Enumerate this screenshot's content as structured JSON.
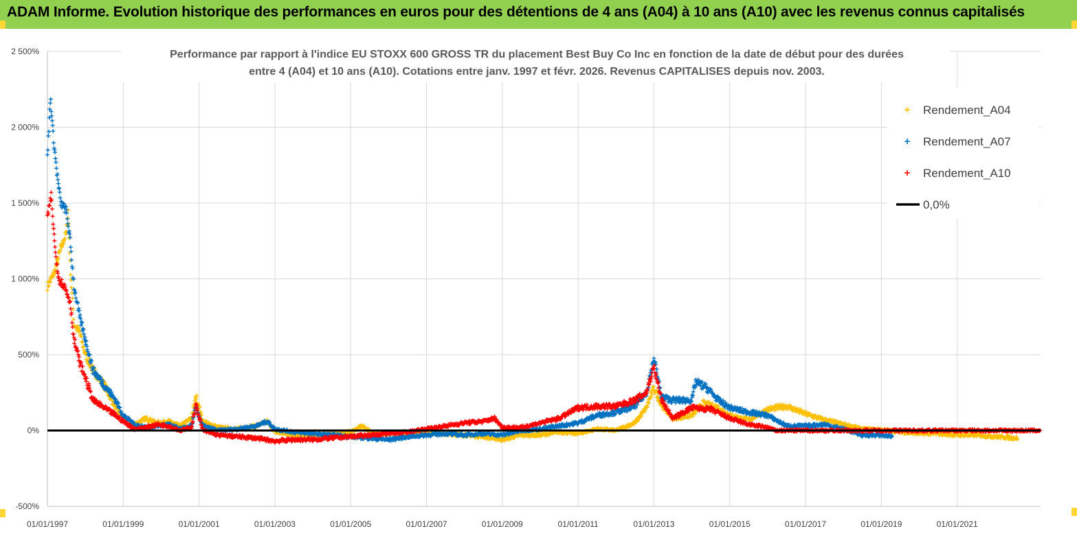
{
  "header": {
    "title": "ADAM Informe. Evolution historique des performances en euros pour des détentions de 4 ans (A04) à 10 ans (A10) avec les revenus connus capitalisés"
  },
  "chart_data": {
    "type": "scatter",
    "subtitle_lines": [
      "Performance par rapport à l'indice EU STOXX 600 GROSS TR  du placement Best Buy Co Inc en fonction de la date de début pour des durées",
      "entre 4 (A04) et 10 ans (A10). Cotations entre janv. 1997 et févr. 2026. Revenus CAPITALISES depuis nov. 2003."
    ],
    "y_ticks": [
      "2 500%",
      "2 000%",
      "1 500%",
      "1 000%",
      "500%",
      "0%",
      "-500%"
    ],
    "y_tick_values": [
      2500,
      2000,
      1500,
      1000,
      500,
      0,
      -500
    ],
    "ylim": [
      -500,
      2500
    ],
    "x_ticks": [
      "01/01/1997",
      "01/01/1999",
      "01/01/2001",
      "01/01/2003",
      "01/01/2005",
      "01/01/2007",
      "01/01/2009",
      "01/01/2011",
      "01/01/2013",
      "01/01/2015",
      "01/01/2017",
      "01/01/2019",
      "01/01/2021"
    ],
    "x_tick_years": [
      1997,
      1999,
      2001,
      2003,
      2005,
      2007,
      2009,
      2011,
      2013,
      2015,
      2017,
      2019,
      2021
    ],
    "xlim": [
      1997,
      2023.2
    ],
    "legend": [
      {
        "name": "Rendement_A04",
        "color": "#ffc000",
        "marker": "plus"
      },
      {
        "name": "Rendement_A07",
        "color": "#0070c0",
        "marker": "plus"
      },
      {
        "name": "Rendement_A10",
        "color": "#ff0000",
        "marker": "plus"
      },
      {
        "name": "0,0%",
        "color": "#000000",
        "marker": "line"
      }
    ],
    "series": [
      {
        "name": "Rendement_A04",
        "color": "#ffc000",
        "x_end": 2022.6,
        "points": [
          [
            1997.0,
            950
          ],
          [
            1997.2,
            1050
          ],
          [
            1997.35,
            1200
          ],
          [
            1997.5,
            1300
          ],
          [
            1997.55,
            1450
          ],
          [
            1997.6,
            1100
          ],
          [
            1997.7,
            700
          ],
          [
            1997.85,
            650
          ],
          [
            1998.0,
            500
          ],
          [
            1998.2,
            400
          ],
          [
            1998.5,
            300
          ],
          [
            1998.8,
            150
          ],
          [
            1999.0,
            80
          ],
          [
            1999.3,
            40
          ],
          [
            1999.6,
            80
          ],
          [
            1999.9,
            50
          ],
          [
            2000.2,
            60
          ],
          [
            2000.5,
            30
          ],
          [
            2000.8,
            80
          ],
          [
            2000.92,
            230
          ],
          [
            2001.1,
            60
          ],
          [
            2001.5,
            20
          ],
          [
            2002.0,
            10
          ],
          [
            2002.5,
            30
          ],
          [
            2002.8,
            60
          ],
          [
            2003.0,
            -10
          ],
          [
            2003.5,
            -30
          ],
          [
            2004.0,
            -30
          ],
          [
            2004.5,
            -20
          ],
          [
            2005.0,
            -10
          ],
          [
            2005.3,
            30
          ],
          [
            2005.6,
            -20
          ],
          [
            2006.0,
            -20
          ],
          [
            2006.5,
            -20
          ],
          [
            2007.0,
            -10
          ],
          [
            2007.5,
            -20
          ],
          [
            2008.0,
            -30
          ],
          [
            2008.5,
            -40
          ],
          [
            2009.0,
            -60
          ],
          [
            2009.5,
            -30
          ],
          [
            2010.0,
            -30
          ],
          [
            2010.5,
            -10
          ],
          [
            2011.0,
            -20
          ],
          [
            2011.5,
            10
          ],
          [
            2012.0,
            0
          ],
          [
            2012.5,
            50
          ],
          [
            2012.8,
            150
          ],
          [
            2013.0,
            280
          ],
          [
            2013.2,
            170
          ],
          [
            2013.5,
            80
          ],
          [
            2014.0,
            100
          ],
          [
            2014.3,
            180
          ],
          [
            2014.7,
            150
          ],
          [
            2015.0,
            100
          ],
          [
            2015.5,
            70
          ],
          [
            2016.0,
            140
          ],
          [
            2016.5,
            160
          ],
          [
            2017.0,
            110
          ],
          [
            2017.5,
            70
          ],
          [
            2018.0,
            40
          ],
          [
            2018.5,
            10
          ],
          [
            2019.0,
            5
          ],
          [
            2019.5,
            -10
          ],
          [
            2020.0,
            -20
          ],
          [
            2020.5,
            -20
          ],
          [
            2021.0,
            -30
          ],
          [
            2021.5,
            -30
          ],
          [
            2022.0,
            -40
          ],
          [
            2022.6,
            -50
          ]
        ]
      },
      {
        "name": "Rendement_A07",
        "color": "#0070c0",
        "x_end": 2019.3,
        "points": [
          [
            1997.0,
            1800
          ],
          [
            1997.08,
            2200
          ],
          [
            1997.15,
            1950
          ],
          [
            1997.25,
            1700
          ],
          [
            1997.35,
            1500
          ],
          [
            1997.5,
            1450
          ],
          [
            1997.6,
            1250
          ],
          [
            1997.7,
            950
          ],
          [
            1997.85,
            750
          ],
          [
            1998.0,
            600
          ],
          [
            1998.2,
            400
          ],
          [
            1998.5,
            300
          ],
          [
            1998.8,
            200
          ],
          [
            1999.0,
            100
          ],
          [
            1999.3,
            40
          ],
          [
            1999.6,
            20
          ],
          [
            1999.9,
            30
          ],
          [
            2000.2,
            40
          ],
          [
            2000.5,
            10
          ],
          [
            2000.8,
            30
          ],
          [
            2000.92,
            150
          ],
          [
            2001.1,
            30
          ],
          [
            2001.5,
            0
          ],
          [
            2002.0,
            10
          ],
          [
            2002.5,
            30
          ],
          [
            2002.8,
            60
          ],
          [
            2003.0,
            10
          ],
          [
            2003.5,
            -10
          ],
          [
            2004.0,
            -20
          ],
          [
            2004.5,
            -30
          ],
          [
            2005.0,
            -40
          ],
          [
            2005.5,
            -50
          ],
          [
            2006.0,
            -60
          ],
          [
            2006.5,
            -40
          ],
          [
            2007.0,
            -30
          ],
          [
            2007.5,
            -20
          ],
          [
            2008.0,
            -30
          ],
          [
            2008.5,
            -20
          ],
          [
            2009.0,
            -30
          ],
          [
            2009.5,
            0
          ],
          [
            2010.0,
            10
          ],
          [
            2010.5,
            30
          ],
          [
            2011.0,
            50
          ],
          [
            2011.5,
            100
          ],
          [
            2012.0,
            120
          ],
          [
            2012.5,
            160
          ],
          [
            2012.8,
            250
          ],
          [
            2013.0,
            480
          ],
          [
            2013.2,
            220
          ],
          [
            2013.5,
            200
          ],
          [
            2014.0,
            200
          ],
          [
            2014.1,
            320
          ],
          [
            2014.4,
            280
          ],
          [
            2014.7,
            200
          ],
          [
            2015.0,
            150
          ],
          [
            2015.5,
            120
          ],
          [
            2016.0,
            100
          ],
          [
            2016.5,
            30
          ],
          [
            2017.0,
            30
          ],
          [
            2017.5,
            40
          ],
          [
            2018.0,
            10
          ],
          [
            2018.5,
            -30
          ],
          [
            2019.0,
            -30
          ],
          [
            2019.3,
            -40
          ]
        ]
      },
      {
        "name": "Rendement_A10",
        "color": "#ff0000",
        "x_end": 2023.2,
        "points": [
          [
            1997.0,
            1400
          ],
          [
            1997.1,
            1550
          ],
          [
            1997.2,
            1200
          ],
          [
            1997.3,
            1000
          ],
          [
            1997.45,
            950
          ],
          [
            1997.6,
            850
          ],
          [
            1997.7,
            600
          ],
          [
            1997.85,
            450
          ],
          [
            1998.0,
            350
          ],
          [
            1998.2,
            200
          ],
          [
            1998.5,
            150
          ],
          [
            1998.8,
            100
          ],
          [
            1999.0,
            60
          ],
          [
            1999.3,
            10
          ],
          [
            1999.6,
            20
          ],
          [
            1999.9,
            40
          ],
          [
            2000.2,
            30
          ],
          [
            2000.5,
            0
          ],
          [
            2000.8,
            20
          ],
          [
            2000.92,
            170
          ],
          [
            2001.1,
            0
          ],
          [
            2001.5,
            -30
          ],
          [
            2002.0,
            -40
          ],
          [
            2002.5,
            -50
          ],
          [
            2003.0,
            -70
          ],
          [
            2003.5,
            -60
          ],
          [
            2004.0,
            -60
          ],
          [
            2004.5,
            -50
          ],
          [
            2005.0,
            -40
          ],
          [
            2005.5,
            -30
          ],
          [
            2006.0,
            -20
          ],
          [
            2006.5,
            -10
          ],
          [
            2007.0,
            10
          ],
          [
            2007.5,
            30
          ],
          [
            2008.0,
            50
          ],
          [
            2008.5,
            60
          ],
          [
            2008.8,
            80
          ],
          [
            2009.0,
            20
          ],
          [
            2009.5,
            20
          ],
          [
            2010.0,
            50
          ],
          [
            2010.5,
            80
          ],
          [
            2011.0,
            150
          ],
          [
            2011.5,
            160
          ],
          [
            2012.0,
            160
          ],
          [
            2012.5,
            200
          ],
          [
            2012.8,
            250
          ],
          [
            2013.0,
            420
          ],
          [
            2013.2,
            200
          ],
          [
            2013.5,
            80
          ],
          [
            2014.0,
            150
          ],
          [
            2014.5,
            140
          ],
          [
            2015.0,
            80
          ],
          [
            2015.5,
            40
          ],
          [
            2016.0,
            20
          ],
          [
            2016.2,
            0
          ],
          [
            2017.0,
            0
          ],
          [
            2018.0,
            0
          ],
          [
            2019.0,
            0
          ],
          [
            2020.0,
            0
          ],
          [
            2021.0,
            0
          ],
          [
            2022.0,
            0
          ],
          [
            2023.2,
            0
          ]
        ]
      },
      {
        "name": "0,0%",
        "color": "#000000",
        "x_end": 2023.2,
        "points": [
          [
            1997.0,
            0
          ],
          [
            2023.2,
            0
          ]
        ]
      }
    ]
  }
}
